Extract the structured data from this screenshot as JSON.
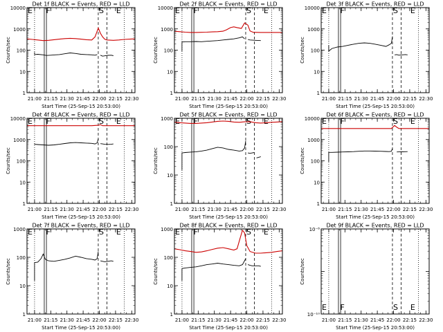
{
  "shared": {
    "x_ticks": [
      "21:00",
      "21:15",
      "21:30",
      "21:45",
      "22:00",
      "22:15",
      "22:30"
    ],
    "xlabel": "Start Time (25-Sep-15 20:53:00)",
    "ylabel": "Counts/sec",
    "markers": [
      "E",
      "F",
      "S",
      "E"
    ]
  },
  "chart_data": [
    {
      "type": "line",
      "title": "Det 1f BLACK = Events, RED = LLD",
      "x_range_min": [
        0,
        100
      ],
      "y_scale": "log",
      "ylim": [
        1,
        10000
      ],
      "y_ticks": [
        "1",
        "10",
        "100",
        "1000",
        "10000"
      ],
      "markers_min": [
        0,
        17,
        66,
        82
      ],
      "series": [
        {
          "name": "Events",
          "color": "#000000",
          "segments": [
            {
              "x": [
                7,
                7,
                10,
                15,
                18,
                22,
                26,
                30,
                35,
                40,
                45,
                50,
                55,
                60,
                63,
                65
              ],
              "y": [
                80,
                62,
                64,
                60,
                56,
                58,
                60,
                62,
                68,
                74,
                70,
                64,
                62,
                60,
                58,
                62
              ]
            },
            {
              "x": [
                68,
                70,
                72,
                75,
                78,
                80
              ],
              "y": [
                58,
                52,
                54,
                57,
                58,
                55
              ]
            }
          ]
        },
        {
          "name": "LLD",
          "color": "#cc0000",
          "segments": [
            {
              "x": [
                0,
                5,
                10,
                15,
                20,
                25,
                30,
                35,
                40,
                45,
                50,
                55,
                60,
                63,
                66,
                68,
                70,
                72,
                74,
                80,
                85,
                90,
                95,
                100
              ],
              "y": [
                340,
                320,
                300,
                280,
                290,
                310,
                330,
                350,
                360,
                350,
                330,
                310,
                300,
                420,
                1100,
                620,
                420,
                330,
                300,
                290,
                300,
                320,
                330,
                340
              ]
            }
          ]
        }
      ]
    },
    {
      "type": "line",
      "title": "Det 2f BLACK = Events, RED = LLD",
      "x_range_min": [
        0,
        100
      ],
      "y_scale": "log",
      "ylim": [
        1,
        10000
      ],
      "y_ticks": [
        "1",
        "10",
        "100",
        "1000",
        "10000"
      ],
      "markers_min": [
        0,
        17,
        66,
        82
      ],
      "series": [
        {
          "name": "Events",
          "color": "#000000",
          "segments": [
            {
              "x": [
                7,
                7,
                10,
                15,
                20,
                25,
                30,
                35,
                40,
                45,
                50,
                55,
                60,
                63,
                65
              ],
              "y": [
                90,
                240,
                250,
                250,
                255,
                250,
                260,
                270,
                280,
                300,
                320,
                340,
                380,
                420,
                340
              ]
            },
            {
              "x": [
                68,
                70,
                75,
                80
              ],
              "y": [
                320,
                300,
                290,
                280
              ]
            }
          ]
        },
        {
          "name": "LLD",
          "color": "#cc0000",
          "segments": [
            {
              "x": [
                0,
                5,
                10,
                15,
                20,
                25,
                30,
                35,
                40,
                45,
                48,
                52,
                55,
                58,
                62,
                65,
                68,
                70,
                73,
                80,
                85,
                90,
                95,
                100
              ],
              "y": [
                780,
                740,
                700,
                680,
                680,
                690,
                700,
                720,
                740,
                780,
                900,
                1150,
                1250,
                1150,
                1050,
                1900,
                1500,
                800,
                690,
                680,
                680,
                680,
                680,
                680
              ]
            }
          ]
        }
      ]
    },
    {
      "type": "line",
      "title": "Det 3f BLACK = Events, RED = LLD",
      "x_range_min": [
        0,
        100
      ],
      "y_scale": "log",
      "ylim": [
        1,
        10000
      ],
      "y_ticks": [
        "1",
        "10",
        "100",
        "1000",
        "10000"
      ],
      "markers_min": [
        0,
        17,
        66,
        82
      ],
      "series": [
        {
          "name": "Events",
          "color": "#000000",
          "segments": [
            {
              "x": [
                7,
                7,
                10,
                15,
                20,
                25,
                30,
                35,
                40,
                45,
                50,
                55,
                60,
                63,
                65,
                66
              ],
              "y": [
                170,
                90,
                120,
                140,
                150,
                170,
                190,
                210,
                220,
                210,
                190,
                170,
                150,
                180,
                210,
                440
              ]
            },
            {
              "x": [
                68,
                70,
                72,
                75,
                78,
                80
              ],
              "y": [
                60,
                62,
                58,
                60,
                62,
                60
              ]
            }
          ]
        }
      ]
    },
    {
      "type": "line",
      "title": "Det 4f BLACK = Events, RED = LLD",
      "x_range_min": [
        0,
        100
      ],
      "y_scale": "log",
      "ylim": [
        1,
        10000
      ],
      "y_ticks": [
        "1",
        "10",
        "100",
        "1000",
        "10000"
      ],
      "markers_min": [
        0,
        17,
        66,
        82
      ],
      "series": [
        {
          "name": "Events",
          "color": "#000000",
          "segments": [
            {
              "x": [
                7,
                7,
                10,
                15,
                20,
                25,
                30,
                35,
                40,
                45,
                50,
                55,
                60,
                63,
                65,
                66
              ],
              "y": [
                640,
                600,
                580,
                560,
                540,
                560,
                600,
                650,
                700,
                720,
                700,
                680,
                660,
                620,
                700,
                1100
              ]
            },
            {
              "x": [
                68,
                70,
                72,
                75,
                78,
                80
              ],
              "y": [
                640,
                620,
                600,
                590,
                600,
                620
              ]
            }
          ]
        },
        {
          "name": "LLD",
          "color": "#cc0000",
          "segments": [
            {
              "x": [
                0,
                10,
                20,
                30,
                40,
                50,
                60,
                66,
                68,
                70,
                80,
                90,
                100
              ],
              "y": [
                4500,
                4500,
                4500,
                4500,
                4500,
                4500,
                4500,
                4700,
                5000,
                4500,
                4500,
                4500,
                4500
              ]
            }
          ]
        }
      ]
    },
    {
      "type": "line",
      "title": "Det 5f BLACK = Events, RED = LLD",
      "x_range_min": [
        0,
        100
      ],
      "y_scale": "log",
      "ylim": [
        1,
        1000
      ],
      "y_ticks": [
        "1",
        "10",
        "100",
        "1000"
      ],
      "markers_min": [
        0,
        17,
        66,
        82
      ],
      "series": [
        {
          "name": "Events",
          "color": "#000000",
          "segments": [
            {
              "x": [
                7,
                7,
                10,
                15,
                20,
                25,
                30,
                35,
                40,
                45,
                50,
                55,
                60,
                63,
                65,
                66
              ],
              "y": [
                15,
                60,
                62,
                64,
                66,
                70,
                75,
                85,
                95,
                90,
                80,
                75,
                70,
                72,
                90,
                160
              ]
            },
            {
              "x": [
                68,
                70,
                72,
                74
              ],
              "y": [
                60,
                58,
                60,
                62
              ]
            },
            {
              "x": [
                76,
                78,
                80
              ],
              "y": [
                40,
                42,
                44
              ]
            }
          ]
        },
        {
          "name": "LLD",
          "color": "#cc0000",
          "segments": [
            {
              "x": [
                0,
                5,
                10,
                15,
                20,
                25,
                30,
                35,
                40,
                45,
                50,
                55,
                60,
                65,
                70,
                75,
                80,
                85,
                90,
                95,
                100
              ],
              "y": [
                720,
                700,
                680,
                660,
                660,
                680,
                700,
                740,
                780,
                800,
                780,
                740,
                720,
                750,
                760,
                700,
                680,
                700,
                720,
                740,
                760
              ]
            }
          ]
        }
      ]
    },
    {
      "type": "line",
      "title": "Det 6f BLACK = Events, RED = LLD",
      "x_range_min": [
        0,
        100
      ],
      "y_scale": "log",
      "ylim": [
        1,
        10000
      ],
      "y_ticks": [
        "1",
        "10",
        "100",
        "1000",
        "10000"
      ],
      "markers_min": [
        0,
        17,
        66,
        82
      ],
      "series": [
        {
          "name": "Events",
          "color": "#000000",
          "segments": [
            {
              "x": [
                7,
                7,
                10,
                15,
                20,
                25,
                30,
                35,
                40,
                45,
                50,
                55,
                60,
                63,
                65,
                66
              ],
              "y": [
                90,
                250,
                250,
                255,
                260,
                265,
                270,
                280,
                290,
                290,
                285,
                280,
                275,
                270,
                280,
                380
              ]
            },
            {
              "x": [
                70,
                72,
                75,
                78,
                80
              ],
              "y": [
                260,
                262,
                265,
                268,
                270
              ]
            }
          ]
        },
        {
          "name": "LLD",
          "color": "#cc0000",
          "segments": [
            {
              "x": [
                0,
                10,
                20,
                30,
                40,
                50,
                60,
                65,
                68,
                70,
                72,
                75,
                80,
                90,
                100
              ],
              "y": [
                3300,
                3300,
                3300,
                3300,
                3300,
                3300,
                3300,
                3300,
                4600,
                3800,
                3300,
                3300,
                3300,
                3300,
                3300
              ]
            }
          ]
        }
      ]
    },
    {
      "type": "line",
      "title": "Det 7f BLACK = Events, RED = LLD",
      "x_range_min": [
        0,
        100
      ],
      "y_scale": "log",
      "ylim": [
        1,
        1000
      ],
      "y_ticks": [
        "1",
        "10",
        "100",
        "1000"
      ],
      "markers_min": [
        0,
        17,
        66,
        82
      ],
      "series": [
        {
          "name": "Events",
          "color": "#000000",
          "segments": [
            {
              "x": [
                7,
                7,
                10,
                13,
                15,
                17,
                20,
                25,
                30,
                35,
                40,
                45,
                50,
                55,
                60,
                63,
                65,
                66
              ],
              "y": [
                15,
                65,
                68,
                90,
                130,
                85,
                75,
                72,
                78,
                85,
                95,
                110,
                100,
                90,
                85,
                80,
                90,
                160
              ]
            },
            {
              "x": [
                68,
                70,
                72,
                75,
                78,
                80
              ],
              "y": [
                75,
                72,
                70,
                72,
                75,
                72
              ]
            }
          ]
        }
      ]
    },
    {
      "type": "line",
      "title": "Det 8f BLACK = Events, RED = LLD",
      "x_range_min": [
        0,
        100
      ],
      "y_scale": "log",
      "ylim": [
        1,
        1000
      ],
      "y_ticks": [
        "1",
        "10",
        "100",
        "1000"
      ],
      "markers_min": [
        0,
        17,
        66,
        82
      ],
      "series": [
        {
          "name": "Events",
          "color": "#000000",
          "segments": [
            {
              "x": [
                7,
                7,
                10,
                15,
                20,
                25,
                30,
                35,
                40,
                45,
                50,
                55,
                60,
                63,
                66
              ],
              "y": [
                15,
                40,
                42,
                44,
                46,
                50,
                55,
                58,
                62,
                58,
                55,
                52,
                50,
                55,
                90
              ]
            },
            {
              "x": [
                68,
                70,
                72,
                75,
                78,
                80
              ],
              "y": [
                55,
                52,
                50,
                50,
                50,
                48
              ]
            }
          ]
        },
        {
          "name": "LLD",
          "color": "#cc0000",
          "segments": [
            {
              "x": [
                0,
                5,
                10,
                15,
                20,
                25,
                30,
                35,
                40,
                45,
                50,
                55,
                58,
                61,
                63,
                65,
                67,
                70,
                75,
                80,
                85,
                90,
                95,
                100
              ],
              "y": [
                200,
                185,
                170,
                160,
                150,
                155,
                170,
                190,
                210,
                220,
                200,
                180,
                200,
                500,
                900,
                720,
                260,
                160,
                140,
                140,
                145,
                150,
                160,
                170
              ]
            }
          ]
        }
      ]
    },
    {
      "type": "line",
      "title": "Det 9f BLACK = Events, RED = LLD",
      "x_range_min": [
        0,
        100
      ],
      "y_scale": "log",
      "ylim": [
        1e-10,
        1e-08
      ],
      "y_ticks": [
        "10⁻⁸",
        "10⁻¹⁰"
      ],
      "markers_min": [
        0,
        17,
        66,
        82
      ],
      "series": []
    }
  ]
}
